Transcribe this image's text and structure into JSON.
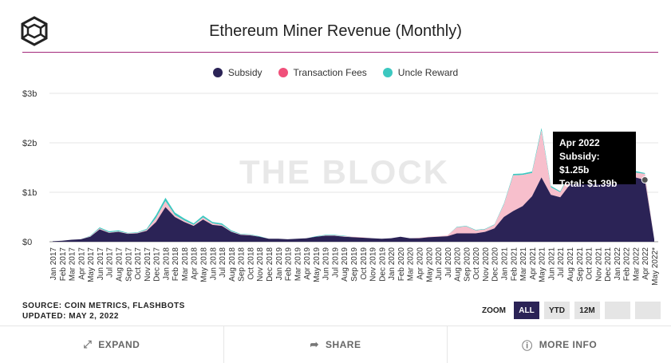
{
  "title": "Ethereum Miner Revenue (Monthly)",
  "watermark": "THE BLOCK",
  "legend": [
    {
      "name": "Subsidy",
      "color": "#2b2356"
    },
    {
      "name": "Transaction Fees",
      "color": "#f0507a"
    },
    {
      "name": "Uncle Reward",
      "color": "#3cc8c0"
    }
  ],
  "tooltip": {
    "title": "Apr 2022",
    "line1": "Subsidy: $1.25b",
    "line2": "Total: $1.39b"
  },
  "source": "SOURCE: COIN METRICS, FLASHBOTS",
  "updated": "UPDATED: MAY 2, 2022",
  "zoom": {
    "label": "ZOOM",
    "buttons": [
      "ALL",
      "YTD",
      "12M",
      "",
      ""
    ],
    "active": "ALL"
  },
  "footer": {
    "expand": "EXPAND",
    "share": "SHARE",
    "more_info": "MORE INFO"
  },
  "chart_data": {
    "type": "area",
    "stacked": true,
    "title": "Ethereum Miner Revenue (Monthly)",
    "y_ticks": [
      "$0",
      "$1b",
      "$2b",
      "$3b"
    ],
    "ylim": [
      0,
      3
    ],
    "y_unit": "billions USD",
    "grid": "horizontal",
    "legend_position": "top-center",
    "categories": [
      "Jan 2017",
      "Feb 2017",
      "Mar 2017",
      "Apr 2017",
      "May 2017",
      "Jun 2017",
      "Jul 2017",
      "Aug 2017",
      "Sep 2017",
      "Oct 2017",
      "Nov 2017",
      "Dec 2017",
      "Jan 2018",
      "Feb 2018",
      "Mar 2018",
      "Apr 2018",
      "May 2018",
      "Jun 2018",
      "Jul 2018",
      "Aug 2018",
      "Sep 2018",
      "Oct 2018",
      "Nov 2018",
      "Dec 2018",
      "Jan 2019",
      "Feb 2019",
      "Mar 2019",
      "Apr 2019",
      "May 2019",
      "Jun 2019",
      "Jul 2019",
      "Aug 2019",
      "Sep 2019",
      "Oct 2019",
      "Nov 2019",
      "Dec 2019",
      "Jan 2020",
      "Feb 2020",
      "Mar 2020",
      "Apr 2020",
      "May 2020",
      "Jun 2020",
      "Jul 2020",
      "Aug 2020",
      "Sep 2020",
      "Oct 2020",
      "Nov 2020",
      "Dec 2020",
      "Jan 2021",
      "Feb 2021",
      "Mar 2021",
      "Apr 2021",
      "May 2021",
      "Jun 2021",
      "Jul 2021",
      "Aug 2021",
      "Sep 2021",
      "Oct 2021",
      "Nov 2021",
      "Dec 2021",
      "Jan 2022",
      "Feb 2022",
      "Mar 2022",
      "Apr 2022",
      "May 2022*"
    ],
    "series": [
      {
        "name": "Subsidy",
        "color": "#2b2356",
        "values": [
          0.01,
          0.02,
          0.04,
          0.05,
          0.1,
          0.25,
          0.18,
          0.2,
          0.16,
          0.17,
          0.22,
          0.4,
          0.7,
          0.5,
          0.4,
          0.32,
          0.45,
          0.34,
          0.32,
          0.2,
          0.14,
          0.13,
          0.1,
          0.06,
          0.06,
          0.05,
          0.06,
          0.07,
          0.1,
          0.12,
          0.12,
          0.1,
          0.09,
          0.08,
          0.07,
          0.06,
          0.07,
          0.1,
          0.07,
          0.07,
          0.09,
          0.1,
          0.11,
          0.17,
          0.17,
          0.17,
          0.2,
          0.27,
          0.5,
          0.62,
          0.72,
          0.92,
          1.3,
          0.95,
          0.9,
          1.15,
          1.3,
          1.3,
          1.3,
          1.25,
          1.3,
          1.2,
          1.3,
          1.25,
          0.05
        ]
      },
      {
        "name": "Transaction Fees",
        "color": "#f7bfcc",
        "values": [
          0,
          0,
          0,
          0,
          0.01,
          0.02,
          0.01,
          0.01,
          0.01,
          0.01,
          0.02,
          0.08,
          0.12,
          0.04,
          0.03,
          0.02,
          0.04,
          0.03,
          0.02,
          0.01,
          0.01,
          0.01,
          0.0,
          0.0,
          0.0,
          0.0,
          0.0,
          0.0,
          0.0,
          0.01,
          0.01,
          0.01,
          0.01,
          0.01,
          0.0,
          0.0,
          0.0,
          0.0,
          0.0,
          0.01,
          0.01,
          0.01,
          0.02,
          0.12,
          0.14,
          0.06,
          0.05,
          0.07,
          0.25,
          0.72,
          0.63,
          0.47,
          0.95,
          0.15,
          0.1,
          0.2,
          0.25,
          0.1,
          0.18,
          0.1,
          0.12,
          0.05,
          0.1,
          0.12,
          0.0
        ]
      },
      {
        "name": "Uncle Reward",
        "color": "#3cc8c0",
        "values": [
          0,
          0,
          0,
          0,
          0.01,
          0.02,
          0.02,
          0.02,
          0.01,
          0.01,
          0.02,
          0.06,
          0.07,
          0.05,
          0.04,
          0.03,
          0.04,
          0.03,
          0.03,
          0.02,
          0.01,
          0.01,
          0.01,
          0.0,
          0.0,
          0.0,
          0.0,
          0.0,
          0.01,
          0.01,
          0.01,
          0.01,
          0.0,
          0.0,
          0.0,
          0.0,
          0.0,
          0.0,
          0.0,
          0.0,
          0.0,
          0.0,
          0.0,
          0.01,
          0.01,
          0.01,
          0.01,
          0.01,
          0.02,
          0.03,
          0.03,
          0.03,
          0.05,
          0.03,
          0.02,
          0.03,
          0.03,
          0.03,
          0.03,
          0.03,
          0.03,
          0.02,
          0.03,
          0.02,
          0.0
        ]
      }
    ]
  }
}
